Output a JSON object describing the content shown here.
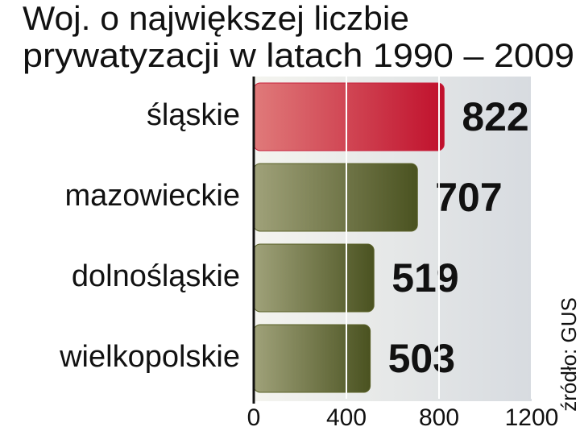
{
  "chart_data": {
    "type": "barh",
    "title": [
      "Woj. o największej liczbie",
      "prywatyzacji w latach 1990 – 2009"
    ],
    "categories": [
      "śląskie",
      "mazowieckie",
      "dolnośląskie",
      "wielkopolskie"
    ],
    "values": [
      822,
      707,
      519,
      503
    ],
    "colors": [
      "#c81e3a",
      "#5a6128",
      "#5a6128",
      "#5a6128"
    ],
    "xlim": [
      0,
      1200
    ],
    "xticks": [
      0,
      400,
      800,
      1200
    ],
    "grid": true,
    "source": "źródło: GUS"
  }
}
